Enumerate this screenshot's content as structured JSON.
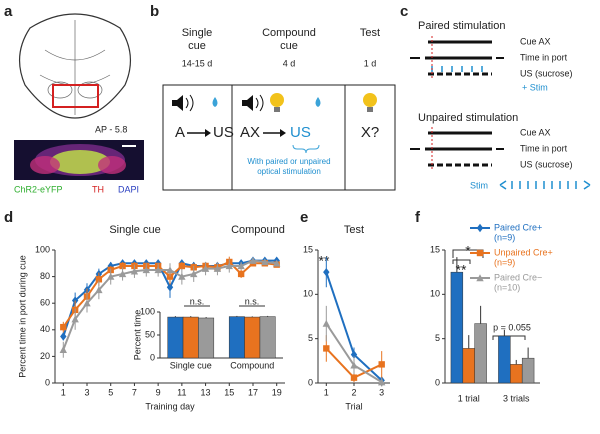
{
  "panel_labels": [
    "a",
    "b",
    "c",
    "d",
    "e",
    "f"
  ],
  "panel_a": {
    "section": "AP - 5.8",
    "stains": [
      "ChR2-eYFP",
      "TH",
      "DAPI"
    ]
  },
  "panel_b": {
    "columns": [
      {
        "title": [
          "Single",
          "cue"
        ],
        "duration": "14-15 d",
        "cue": "A",
        "outcome": "US"
      },
      {
        "title": [
          "Compound",
          "cue"
        ],
        "duration": "4 d",
        "cue": "AX",
        "outcome": "US",
        "note": [
          "With paired or unpaired",
          "optical stimulation"
        ]
      },
      {
        "title": [
          "Test"
        ],
        "duration": "1 d",
        "cue": "X?"
      }
    ]
  },
  "panel_c": {
    "paired": {
      "title": "Paired stimulation",
      "rows": [
        "Cue AX",
        "Time in port",
        "US (sucrose)"
      ],
      "stim": "+ Stim"
    },
    "unpaired": {
      "title": "Unpaired stimulation",
      "rows": [
        "Cue AX",
        "Time in port",
        "US (sucrose)"
      ],
      "stim": "Stim"
    }
  },
  "chart_data": [
    {
      "type": "line",
      "annotations": [
        "Single cue",
        "Compound"
      ],
      "xlabel": "Training day",
      "ylabel": "Percent time in port during cue",
      "x": [
        1,
        2,
        3,
        4,
        5,
        6,
        7,
        8,
        9,
        10,
        11,
        12,
        13,
        14,
        15,
        16,
        17,
        18,
        19
      ],
      "xlim": [
        0.3,
        19.7
      ],
      "xticks": [
        1,
        3,
        5,
        7,
        9,
        11,
        13,
        15,
        17,
        19
      ],
      "ylim": [
        0,
        100
      ],
      "yticks": [
        0,
        20,
        40,
        60,
        80,
        100
      ],
      "series": [
        {
          "color": "#1f6fc0",
          "marker": "diamond",
          "values": [
            35,
            62,
            70,
            82,
            88,
            90,
            90,
            90,
            90,
            72,
            90,
            88,
            88,
            88,
            90,
            90,
            92,
            92,
            92
          ],
          "errors": [
            3,
            6,
            5,
            4,
            3,
            2,
            2,
            2,
            2,
            8,
            2,
            3,
            3,
            3,
            3,
            2,
            2,
            2,
            2
          ]
        },
        {
          "color": "#e8731f",
          "marker": "square",
          "values": [
            42,
            55,
            65,
            78,
            85,
            88,
            88,
            88,
            88,
            80,
            88,
            87,
            88,
            87,
            91,
            82,
            90,
            90,
            89
          ],
          "errors": [
            4,
            7,
            6,
            5,
            3,
            3,
            3,
            2,
            2,
            6,
            3,
            3,
            3,
            3,
            4,
            3,
            2,
            2,
            2
          ]
        },
        {
          "color": "#9a9a9a",
          "marker": "triangle",
          "values": [
            25,
            48,
            60,
            70,
            80,
            82,
            84,
            85,
            85,
            85,
            80,
            82,
            86,
            86,
            88,
            88,
            92,
            91,
            90
          ],
          "errors": [
            6,
            8,
            7,
            7,
            6,
            5,
            5,
            5,
            5,
            5,
            6,
            6,
            5,
            5,
            5,
            3,
            2,
            2,
            2
          ]
        }
      ]
    },
    {
      "type": "bar",
      "ylabel": "Percent time",
      "categories": [
        "Single cue",
        "Compound"
      ],
      "annotations": [
        "n.s.",
        "n.s."
      ],
      "ylim": [
        0,
        100
      ],
      "yticks": [
        0,
        50,
        100
      ],
      "series": [
        {
          "color": "#1f6fc0",
          "values": [
            89,
            90
          ],
          "errors": [
            2,
            1.5
          ]
        },
        {
          "color": "#e8731f",
          "values": [
            89,
            89
          ],
          "errors": [
            2,
            1.5
          ]
        },
        {
          "color": "#9a9a9a",
          "values": [
            87,
            90
          ],
          "errors": [
            2,
            1.5
          ]
        }
      ]
    },
    {
      "type": "line",
      "title": "Test",
      "annotations": [
        "**"
      ],
      "xlabel": "Trial",
      "x": [
        1,
        2,
        3
      ],
      "xlim": [
        0.7,
        3.3
      ],
      "xticks": [
        1,
        2,
        3
      ],
      "ylim": [
        0,
        15
      ],
      "yticks": [
        0,
        5,
        10,
        15
      ],
      "series": [
        {
          "color": "#1f6fc0",
          "marker": "diamond",
          "values": [
            12.5,
            3.2,
            0.3
          ],
          "errors": [
            1.7,
            0.8,
            0.3
          ]
        },
        {
          "color": "#e8731f",
          "marker": "square",
          "values": [
            3.9,
            0.6,
            2.1
          ],
          "errors": [
            1.5,
            0.5,
            1.5
          ]
        },
        {
          "color": "#9a9a9a",
          "marker": "triangle",
          "values": [
            6.7,
            2.0,
            0.1
          ],
          "errors": [
            2.0,
            1.0,
            0.5
          ]
        }
      ]
    },
    {
      "type": "bar",
      "categories": [
        "1 trial",
        "3 trials"
      ],
      "annotations": [
        "**",
        "*",
        "p = 0.055"
      ],
      "ylim": [
        0,
        15
      ],
      "yticks": [
        0,
        5,
        10,
        15
      ],
      "series": [
        {
          "name": "Paired Cre+",
          "note": "(n=9)",
          "color": "#1f6fc0",
          "marker": "diamond",
          "values": [
            12.5,
            5.3
          ],
          "errors": [
            1.7,
            0.7
          ]
        },
        {
          "name": "Unpaired Cre+",
          "note": "(n=9)",
          "color": "#e8731f",
          "marker": "square",
          "values": [
            3.9,
            2.1
          ],
          "errors": [
            1.5,
            0.5
          ]
        },
        {
          "name": "Paired Cre−",
          "note": "(n=10)",
          "color": "#9a9a9a",
          "marker": "triangle",
          "values": [
            6.7,
            2.8
          ],
          "errors": [
            2.0,
            1.2
          ]
        }
      ]
    }
  ]
}
